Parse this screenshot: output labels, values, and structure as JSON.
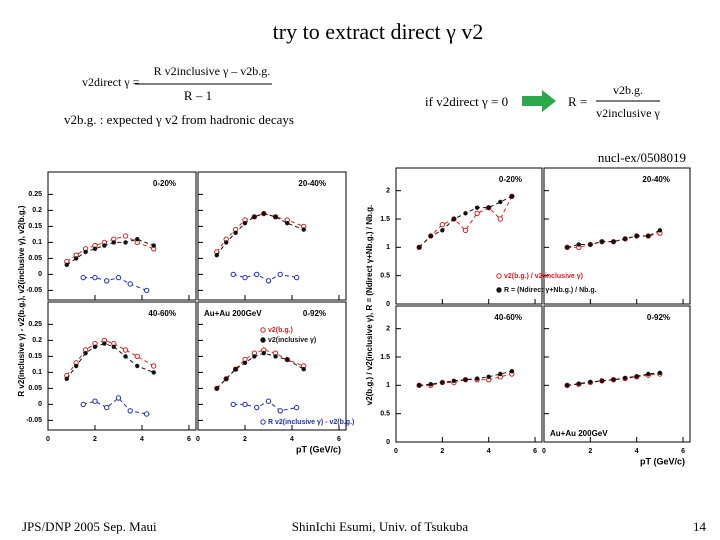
{
  "slide": {
    "title": "try to extract direct γ v2",
    "formula": {
      "lhs": "v2direct γ =",
      "numerator": "R v2inclusive γ – v2b.g.",
      "denominator": "R – 1"
    },
    "note": "v2b.g. : expected γ v2 from hadronic decays",
    "condition": "if v2direct γ = 0",
    "ratio": {
      "lhs": "R =",
      "numerator": "v2b.g.",
      "denominator": "v2inclusive γ"
    },
    "reference": "nucl-ex/0508019",
    "footer_left": "JPS/DNP 2005 Sep. Maui",
    "footer_center": "ShinIchi Esumi, Univ. of Tsukuba",
    "page_number": "14"
  },
  "figures": [
    {
      "ylabel": "R v2(inclusive γ) - v2(b.g.),  v2(inclusive γ),  v2(b.g.)",
      "xlabel": "pT (GeV/c)",
      "xlim": [
        0,
        6.3
      ],
      "xticks": [
        0,
        2,
        4,
        6
      ],
      "ylim": [
        -0.08,
        0.32
      ],
      "yticks": [
        -0.05,
        0,
        0.05,
        0.1,
        0.15,
        0.2,
        0.25
      ],
      "system": "Au+Au 200GeV",
      "legend": [
        {
          "name": "v2(b.g.)",
          "color": "#d42020"
        },
        {
          "name": "v2(inclusive γ)",
          "color": "#111111"
        },
        {
          "name": "R v2(inclusive γ) - v2(b.g.)",
          "color": "#2030b0"
        }
      ],
      "panels": [
        {
          "label": "0-20%",
          "series": [
            {
              "x": [
                0.8,
                1.2,
                1.6,
                2.0,
                2.4,
                2.8,
                3.3,
                3.8,
                4.5
              ],
              "values": [
                0.04,
                0.06,
                0.08,
                0.09,
                0.1,
                0.11,
                0.12,
                0.1,
                0.08
              ]
            },
            {
              "x": [
                0.8,
                1.2,
                1.6,
                2.0,
                2.4,
                2.8,
                3.3,
                3.8,
                4.5
              ],
              "values": [
                0.03,
                0.05,
                0.07,
                0.08,
                0.09,
                0.1,
                0.1,
                0.11,
                0.09
              ]
            },
            {
              "x": [
                1.5,
                2,
                2.5,
                3,
                3.5,
                4.2
              ],
              "values": [
                -0.01,
                -0.01,
                -0.02,
                -0.01,
                -0.03,
                -0.05
              ]
            }
          ]
        },
        {
          "label": "20-40%",
          "series": [
            {
              "x": [
                0.8,
                1.2,
                1.6,
                2.0,
                2.4,
                2.8,
                3.3,
                3.8,
                4.5
              ],
              "values": [
                0.07,
                0.11,
                0.14,
                0.17,
                0.18,
                0.19,
                0.18,
                0.17,
                0.15
              ]
            },
            {
              "x": [
                0.8,
                1.2,
                1.6,
                2.0,
                2.4,
                2.8,
                3.3,
                3.8,
                4.5
              ],
              "values": [
                0.06,
                0.1,
                0.13,
                0.16,
                0.18,
                0.19,
                0.18,
                0.16,
                0.14
              ]
            },
            {
              "x": [
                1.5,
                2,
                2.5,
                3,
                3.5,
                4.2
              ],
              "values": [
                0,
                -0.01,
                0,
                -0.02,
                0,
                -0.01
              ]
            }
          ]
        },
        {
          "label": "40-60%",
          "series": [
            {
              "x": [
                0.8,
                1.2,
                1.6,
                2.0,
                2.4,
                2.8,
                3.3,
                3.8,
                4.5
              ],
              "values": [
                0.09,
                0.13,
                0.17,
                0.19,
                0.2,
                0.19,
                0.17,
                0.15,
                0.12
              ]
            },
            {
              "x": [
                0.8,
                1.2,
                1.6,
                2.0,
                2.4,
                2.8,
                3.3,
                3.8,
                4.5
              ],
              "values": [
                0.08,
                0.12,
                0.16,
                0.18,
                0.19,
                0.18,
                0.15,
                0.12,
                0.1
              ]
            },
            {
              "x": [
                1.5,
                2,
                2.5,
                3,
                3.5,
                4.2
              ],
              "values": [
                0,
                0.01,
                -0.01,
                0.02,
                -0.02,
                -0.03
              ]
            }
          ]
        },
        {
          "label": "0-92%",
          "series": [
            {
              "x": [
                0.8,
                1.2,
                1.6,
                2.0,
                2.4,
                2.8,
                3.3,
                3.8,
                4.5
              ],
              "values": [
                0.05,
                0.08,
                0.11,
                0.14,
                0.16,
                0.17,
                0.16,
                0.14,
                0.12
              ]
            },
            {
              "x": [
                0.8,
                1.2,
                1.6,
                2.0,
                2.4,
                2.8,
                3.3,
                3.8,
                4.5
              ],
              "values": [
                0.05,
                0.08,
                0.11,
                0.13,
                0.15,
                0.16,
                0.15,
                0.14,
                0.11
              ]
            },
            {
              "x": [
                1.5,
                2,
                2.5,
                3,
                3.5,
                4.2
              ],
              "values": [
                0,
                0,
                -0.01,
                0.01,
                -0.02,
                -0.01
              ]
            }
          ]
        }
      ]
    },
    {
      "ylabel": "v2(b.g.) / v2(inclusive γ),  R = (Ndirect γ+Nb.g.) / Nb.g.",
      "xlabel": "pT (GeV/c)",
      "xlim": [
        0,
        6.3
      ],
      "xticks": [
        0,
        2,
        4,
        6
      ],
      "ylim": [
        0,
        2.4
      ],
      "yticks": [
        0,
        0.5,
        1,
        1.5,
        2
      ],
      "system": "Au+Au 200GeV",
      "legend": [
        {
          "name": "v2(b.g.) / v2(inclusive γ)",
          "color": "#d42020"
        },
        {
          "name": "R = (Ndirect γ+Nb.g.) / Nb.g.",
          "color": "#111111"
        }
      ],
      "panels": [
        {
          "label": "0-20%",
          "series": [
            {
              "x": [
                1,
                1.5,
                2,
                2.5,
                3,
                3.5,
                4,
                4.5,
                5
              ],
              "values": [
                1.0,
                1.2,
                1.4,
                1.5,
                1.3,
                1.6,
                1.7,
                1.5,
                1.9
              ]
            },
            {
              "x": [
                1,
                1.5,
                2,
                2.5,
                3,
                3.5,
                4,
                4.5,
                5
              ],
              "values": [
                1.0,
                1.2,
                1.3,
                1.5,
                1.6,
                1.7,
                1.7,
                1.8,
                1.9
              ]
            }
          ]
        },
        {
          "label": "20-40%",
          "series": [
            {
              "x": [
                1,
                1.5,
                2,
                2.5,
                3,
                3.5,
                4,
                4.5,
                5
              ],
              "values": [
                1.0,
                1.0,
                1.05,
                1.1,
                1.1,
                1.15,
                1.2,
                1.2,
                1.25
              ]
            },
            {
              "x": [
                1,
                1.5,
                2,
                2.5,
                3,
                3.5,
                4,
                4.5,
                5
              ],
              "values": [
                1.0,
                1.05,
                1.05,
                1.1,
                1.1,
                1.15,
                1.2,
                1.2,
                1.3
              ]
            }
          ]
        },
        {
          "label": "40-60%",
          "series": [
            {
              "x": [
                1,
                1.5,
                2,
                2.5,
                3,
                3.5,
                4,
                4.5,
                5
              ],
              "values": [
                1.0,
                1.0,
                1.05,
                1.05,
                1.1,
                1.1,
                1.1,
                1.15,
                1.2
              ]
            },
            {
              "x": [
                1,
                1.5,
                2,
                2.5,
                3,
                3.5,
                4,
                4.5,
                5
              ],
              "values": [
                1.0,
                1.02,
                1.05,
                1.08,
                1.1,
                1.12,
                1.15,
                1.2,
                1.25
              ]
            }
          ]
        },
        {
          "label": "0-92%",
          "series": [
            {
              "x": [
                1,
                1.5,
                2,
                2.5,
                3,
                3.5,
                4,
                4.5,
                5
              ],
              "values": [
                1.0,
                1.02,
                1.05,
                1.08,
                1.1,
                1.12,
                1.15,
                1.18,
                1.2
              ]
            },
            {
              "x": [
                1,
                1.5,
                2,
                2.5,
                3,
                3.5,
                4,
                4.5,
                5
              ],
              "values": [
                1.0,
                1.03,
                1.06,
                1.08,
                1.1,
                1.13,
                1.16,
                1.2,
                1.22
              ]
            }
          ]
        }
      ]
    }
  ]
}
